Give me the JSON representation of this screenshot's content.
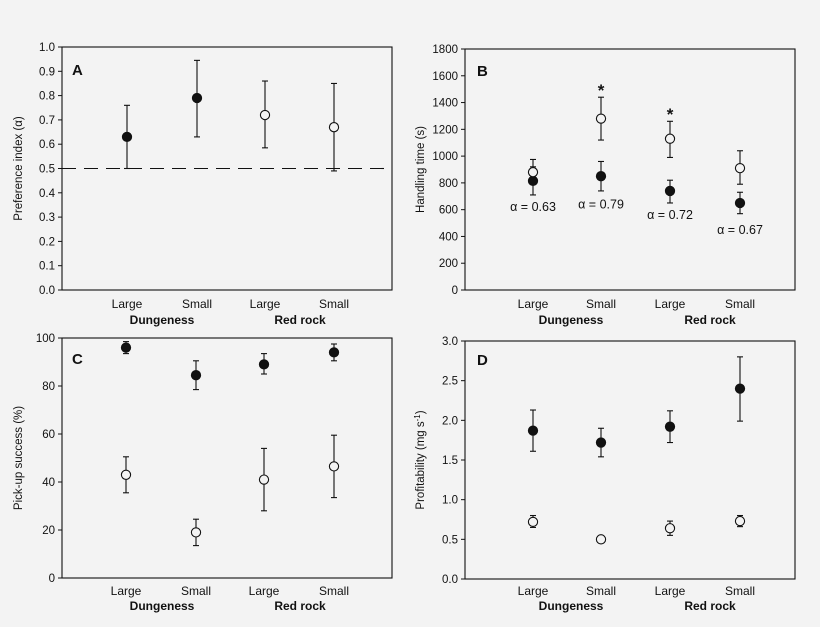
{
  "colors": {
    "background": "#f3f3f3",
    "ink": "#111111",
    "open_fill": "#f3f3f3"
  },
  "chart_data": [
    {
      "type": "scatter",
      "panel_label": "A",
      "ylabel": "Preference index (α)",
      "ylim": [
        0,
        1
      ],
      "yticks": [
        "0.0",
        "0.1",
        "0.2",
        "0.3",
        "0.4",
        "0.5",
        "0.6",
        "0.7",
        "0.8",
        "0.9",
        "1.0"
      ],
      "categories": [
        "Large",
        "Small",
        "Large",
        "Small"
      ],
      "groups": [
        "Dungeness",
        "Red rock"
      ],
      "reference_line": 0.5,
      "series": [
        {
          "name": "Dungeness",
          "marker": "filled",
          "points": [
            {
              "cat": 0,
              "y": 0.63,
              "lo": 0.5,
              "hi": 0.76
            },
            {
              "cat": 1,
              "y": 0.79,
              "lo": 0.63,
              "hi": 0.945
            }
          ]
        },
        {
          "name": "Red rock",
          "marker": "open",
          "points": [
            {
              "cat": 2,
              "y": 0.72,
              "lo": 0.585,
              "hi": 0.86
            },
            {
              "cat": 3,
              "y": 0.67,
              "lo": 0.49,
              "hi": 0.85
            }
          ]
        }
      ],
      "annotations": []
    },
    {
      "type": "scatter",
      "panel_label": "B",
      "ylabel": "Handling time (s)",
      "ylim": [
        0,
        1800
      ],
      "yticks": [
        "0",
        "200",
        "400",
        "600",
        "800",
        "1000",
        "1200",
        "1400",
        "1600",
        "1800"
      ],
      "categories": [
        "Large",
        "Small",
        "Large",
        "Small"
      ],
      "groups": [
        "Dungeness",
        "Red rock"
      ],
      "series": [
        {
          "name": "filled",
          "marker": "filled",
          "points": [
            {
              "cat": 0,
              "y": 815,
              "lo": 710,
              "hi": 920
            },
            {
              "cat": 1,
              "y": 850,
              "lo": 740,
              "hi": 960
            },
            {
              "cat": 2,
              "y": 740,
              "lo": 650,
              "hi": 820
            },
            {
              "cat": 3,
              "y": 650,
              "lo": 570,
              "hi": 730
            }
          ]
        },
        {
          "name": "open",
          "marker": "open",
          "points": [
            {
              "cat": 0,
              "y": 880,
              "lo": 800,
              "hi": 975
            },
            {
              "cat": 1,
              "y": 1280,
              "lo": 1120,
              "hi": 1440
            },
            {
              "cat": 2,
              "y": 1130,
              "lo": 990,
              "hi": 1260
            },
            {
              "cat": 3,
              "y": 910,
              "lo": 790,
              "hi": 1040
            }
          ]
        }
      ],
      "annotations": [
        {
          "text": "α = 0.63",
          "cat": 0,
          "y": 620
        },
        {
          "text": "α = 0.79",
          "cat": 1,
          "y": 640
        },
        {
          "text": "α = 0.72",
          "cat": 2,
          "y": 560
        },
        {
          "text": "α = 0.67",
          "cat": 3,
          "y": 450
        }
      ],
      "significance": [
        {
          "text": "*",
          "cat": 1,
          "y": 1450
        },
        {
          "text": "*",
          "cat": 2,
          "y": 1270
        }
      ]
    },
    {
      "type": "scatter",
      "panel_label": "C",
      "ylabel": "Pick-up success (%)",
      "ylim": [
        0,
        100
      ],
      "yticks": [
        "0",
        "20",
        "40",
        "60",
        "80",
        "100"
      ],
      "categories": [
        "Large",
        "Small",
        "Large",
        "Small"
      ],
      "groups": [
        "Dungeness",
        "Red rock"
      ],
      "series": [
        {
          "name": "filled",
          "marker": "filled",
          "points": [
            {
              "cat": 0,
              "y": 96,
              "lo": 93.5,
              "hi": 98.5
            },
            {
              "cat": 1,
              "y": 84.5,
              "lo": 78.5,
              "hi": 90.5
            },
            {
              "cat": 2,
              "y": 89,
              "lo": 85,
              "hi": 93.5
            },
            {
              "cat": 3,
              "y": 94,
              "lo": 90.5,
              "hi": 97.5
            }
          ]
        },
        {
          "name": "open",
          "marker": "open",
          "points": [
            {
              "cat": 0,
              "y": 43,
              "lo": 35.5,
              "hi": 50.5
            },
            {
              "cat": 1,
              "y": 19,
              "lo": 13.5,
              "hi": 24.5
            },
            {
              "cat": 2,
              "y": 41,
              "lo": 28,
              "hi": 54
            },
            {
              "cat": 3,
              "y": 46.5,
              "lo": 33.5,
              "hi": 59.5
            }
          ]
        }
      ],
      "annotations": []
    },
    {
      "type": "scatter",
      "panel_label": "D",
      "ylabel": "Profitability (mg s",
      "ylabel_sup": "-1",
      "ylabel_end": ")",
      "ylim": [
        0,
        3
      ],
      "yticks": [
        "0.0",
        "0.5",
        "1.0",
        "1.5",
        "2.0",
        "2.5",
        "3.0"
      ],
      "categories": [
        "Large",
        "Small",
        "Large",
        "Small"
      ],
      "groups": [
        "Dungeness",
        "Red rock"
      ],
      "series": [
        {
          "name": "filled",
          "marker": "filled",
          "points": [
            {
              "cat": 0,
              "y": 1.87,
              "lo": 1.61,
              "hi": 2.13
            },
            {
              "cat": 1,
              "y": 1.72,
              "lo": 1.54,
              "hi": 1.9
            },
            {
              "cat": 2,
              "y": 1.92,
              "lo": 1.72,
              "hi": 2.12
            },
            {
              "cat": 3,
              "y": 2.4,
              "lo": 1.99,
              "hi": 2.8
            }
          ]
        },
        {
          "name": "open",
          "marker": "open",
          "points": [
            {
              "cat": 0,
              "y": 0.72,
              "lo": 0.65,
              "hi": 0.8
            },
            {
              "cat": 1,
              "y": 0.5,
              "lo": 0.46,
              "hi": 0.54
            },
            {
              "cat": 2,
              "y": 0.64,
              "lo": 0.55,
              "hi": 0.73
            },
            {
              "cat": 3,
              "y": 0.73,
              "lo": 0.66,
              "hi": 0.8
            }
          ]
        }
      ],
      "annotations": []
    }
  ]
}
